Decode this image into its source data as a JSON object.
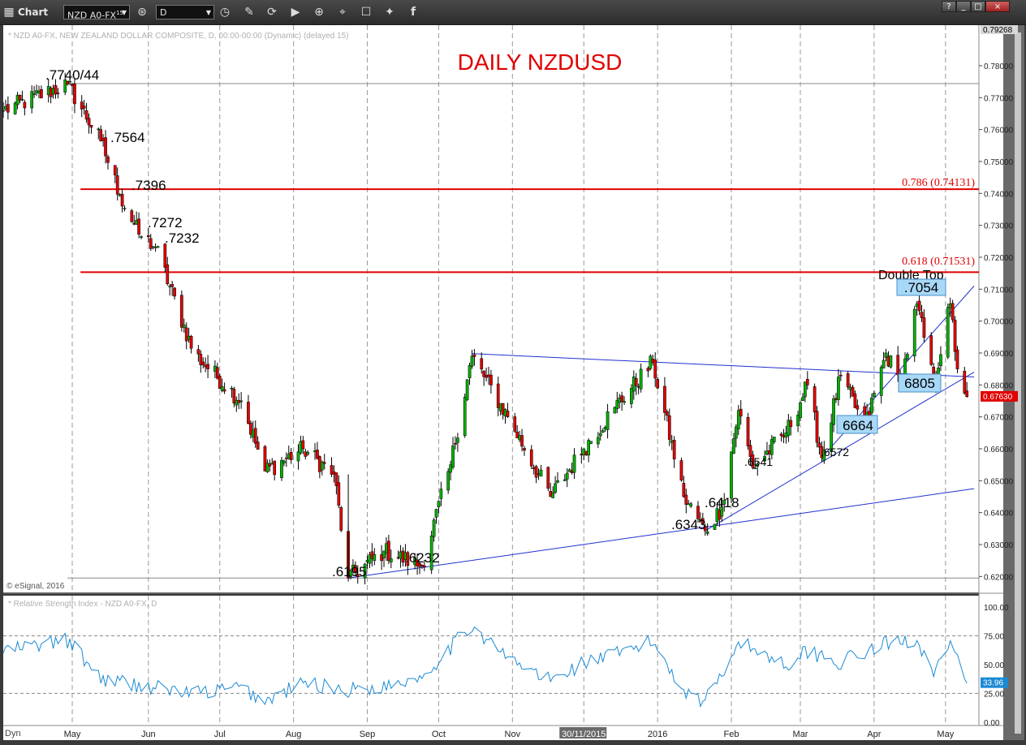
{
  "window": {
    "title": "Chart",
    "symbol": "NZD A0-FX",
    "symbol_superscript": "15",
    "interval": "D",
    "buttons": [
      "?",
      "_",
      "□",
      "×"
    ]
  },
  "price_panel": {
    "header": "* NZD A0-FX, NEW ZEALAND DOLLAR COMPOSITE, D, 00:00-00:00 (Dynamic) (delayed 15)",
    "title": "DAILY NZDUSD",
    "copyright": "© eSignal, 2016",
    "y_ticks": [
      "0.78000",
      "0.77000",
      "0.76000",
      "0.75000",
      "0.74000",
      "0.73000",
      "0.72000",
      "0.71000",
      "0.70000",
      "0.69000",
      "0.68000",
      "0.67000",
      "0.66000",
      "0.65000",
      "0.64000",
      "0.63000",
      "0.62000"
    ],
    "top_price_label": "0.79268",
    "last_price_label": "0.67630",
    "fib_labels": [
      "0.786 (0.74131)",
      "0.618 (0.71531)"
    ],
    "annotations": [
      ".7740/44",
      ".7564",
      ".7396",
      ".7272",
      ".7232",
      ".6195",
      ".6232",
      ".6343",
      ".6418",
      ".6541",
      ".6572",
      "Double Top"
    ],
    "boxed_annotations": [
      ".7054",
      "6805",
      "6664"
    ]
  },
  "rsi_panel": {
    "header": "* Relative Strength Index - NZD A0-FX, D",
    "y_ticks": [
      "100.00",
      "75.00",
      "50.00",
      "25.00",
      "0.00"
    ],
    "last_value_label": "33.96"
  },
  "x_axis": {
    "labels": [
      "May",
      "Jun",
      "Jul",
      "Aug",
      "Sep",
      "Oct",
      "Nov",
      "30/11/2015",
      "2016",
      "Feb",
      "Mar",
      "Apr",
      "May"
    ],
    "corner_label": "Dyn"
  },
  "chart_data": [
    {
      "type": "candlestick",
      "title": "DAILY NZDUSD",
      "ylim": [
        0.615,
        0.7927
      ],
      "x_range": [
        "2015-04-01",
        "2016-05-10"
      ],
      "key_points": [
        {
          "date": "2015-04-01",
          "price": 0.766
        },
        {
          "date": "2015-04-28",
          "price": 0.7742,
          "label": ".7740/44"
        },
        {
          "date": "2015-05-12",
          "price": 0.7564,
          "label": ".7564"
        },
        {
          "date": "2015-05-20",
          "price": 0.7396,
          "label": ".7396"
        },
        {
          "date": "2015-05-28",
          "price": 0.7272,
          "label": ".7272"
        },
        {
          "date": "2015-06-04",
          "price": 0.7232,
          "label": ".7232"
        },
        {
          "date": "2015-06-20",
          "price": 0.69
        },
        {
          "date": "2015-07-10",
          "price": 0.675
        },
        {
          "date": "2015-07-20",
          "price": 0.653
        },
        {
          "date": "2015-08-05",
          "price": 0.66
        },
        {
          "date": "2015-08-18",
          "price": 0.652
        },
        {
          "date": "2015-08-24",
          "price": 0.6195,
          "label": ".6195"
        },
        {
          "date": "2015-09-08",
          "price": 0.628
        },
        {
          "date": "2015-09-24",
          "price": 0.6232,
          "label": ".6232"
        },
        {
          "date": "2015-10-06",
          "price": 0.655
        },
        {
          "date": "2015-10-15",
          "price": 0.689
        },
        {
          "date": "2015-10-30",
          "price": 0.67
        },
        {
          "date": "2015-11-17",
          "price": 0.645
        },
        {
          "date": "2015-12-01",
          "price": 0.66
        },
        {
          "date": "2015-12-14",
          "price": 0.673
        },
        {
          "date": "2015-12-30",
          "price": 0.687
        },
        {
          "date": "2016-01-12",
          "price": 0.645
        },
        {
          "date": "2016-01-21",
          "price": 0.6343,
          "label": ".6343"
        },
        {
          "date": "2016-01-28",
          "price": 0.6418,
          "label": ".6418"
        },
        {
          "date": "2016-02-04",
          "price": 0.672
        },
        {
          "date": "2016-02-10",
          "price": 0.6541,
          "label": ".6541"
        },
        {
          "date": "2016-02-24",
          "price": 0.665
        },
        {
          "date": "2016-03-04",
          "price": 0.68
        },
        {
          "date": "2016-03-10",
          "price": 0.6572,
          "label": ".6572"
        },
        {
          "date": "2016-03-18",
          "price": 0.683
        },
        {
          "date": "2016-03-28",
          "price": 0.6664
        },
        {
          "date": "2016-04-06",
          "price": 0.69
        },
        {
          "date": "2016-04-12",
          "price": 0.68
        },
        {
          "date": "2016-04-19",
          "price": 0.7054,
          "label": ".7054"
        },
        {
          "date": "2016-04-26",
          "price": 0.6805
        },
        {
          "date": "2016-05-03",
          "price": 0.7054
        },
        {
          "date": "2016-05-06",
          "price": 0.685
        },
        {
          "date": "2016-05-10",
          "price": 0.6763
        }
      ],
      "horizontal_lines": [
        {
          "price": 0.7744,
          "color": "#888888"
        },
        {
          "price": 0.74131,
          "color": "#e00000",
          "label": "0.786 (0.74131)"
        },
        {
          "price": 0.71531,
          "color": "#e00000",
          "label": "0.618 (0.71531)"
        },
        {
          "price": 0.6195,
          "color": "#888888"
        }
      ],
      "trendlines": [
        {
          "from": {
            "date": "2015-08-24",
            "price": 0.6195
          },
          "to": {
            "date": "2016-05-13",
            "price": 0.6475
          }
        },
        {
          "from": {
            "date": "2015-10-15",
            "price": 0.6898
          },
          "to": {
            "date": "2016-05-13",
            "price": 0.6825
          }
        },
        {
          "from": {
            "date": "2016-03-10",
            "price": 0.6572
          },
          "to": {
            "date": "2016-05-13",
            "price": 0.711
          }
        },
        {
          "from": {
            "date": "2016-01-21",
            "price": 0.6343
          },
          "to": {
            "date": "2016-05-13",
            "price": 0.684
          }
        }
      ],
      "colors": {
        "up": "#00b000",
        "down": "#e00000",
        "trendline": "#2030d0",
        "fib": "#e00000",
        "last": "#e00000"
      }
    },
    {
      "type": "line",
      "name": "Relative Strength Index",
      "ylim": [
        0,
        100
      ],
      "reference_levels": [
        70,
        30
      ],
      "points": [
        {
          "date": "2015-04-01",
          "value": 62
        },
        {
          "date": "2015-04-28",
          "value": 71
        },
        {
          "date": "2015-05-12",
          "value": 38
        },
        {
          "date": "2015-05-28",
          "value": 32
        },
        {
          "date": "2015-06-20",
          "value": 25
        },
        {
          "date": "2015-07-10",
          "value": 30
        },
        {
          "date": "2015-07-20",
          "value": 18
        },
        {
          "date": "2015-08-05",
          "value": 34
        },
        {
          "date": "2015-08-24",
          "value": 28
        },
        {
          "date": "2015-09-08",
          "value": 31
        },
        {
          "date": "2015-09-24",
          "value": 40
        },
        {
          "date": "2015-10-15",
          "value": 84
        },
        {
          "date": "2015-10-30",
          "value": 55
        },
        {
          "date": "2015-11-17",
          "value": 36
        },
        {
          "date": "2015-12-01",
          "value": 52
        },
        {
          "date": "2015-12-14",
          "value": 58
        },
        {
          "date": "2015-12-30",
          "value": 70
        },
        {
          "date": "2016-01-12",
          "value": 28
        },
        {
          "date": "2016-01-21",
          "value": 18
        },
        {
          "date": "2016-02-04",
          "value": 70
        },
        {
          "date": "2016-02-24",
          "value": 50
        },
        {
          "date": "2016-03-04",
          "value": 62
        },
        {
          "date": "2016-03-18",
          "value": 52
        },
        {
          "date": "2016-04-06",
          "value": 68
        },
        {
          "date": "2016-04-19",
          "value": 72
        },
        {
          "date": "2016-04-26",
          "value": 45
        },
        {
          "date": "2016-05-03",
          "value": 66
        },
        {
          "date": "2016-05-10",
          "value": 33.96
        }
      ],
      "color": "#1a8ad4"
    }
  ]
}
